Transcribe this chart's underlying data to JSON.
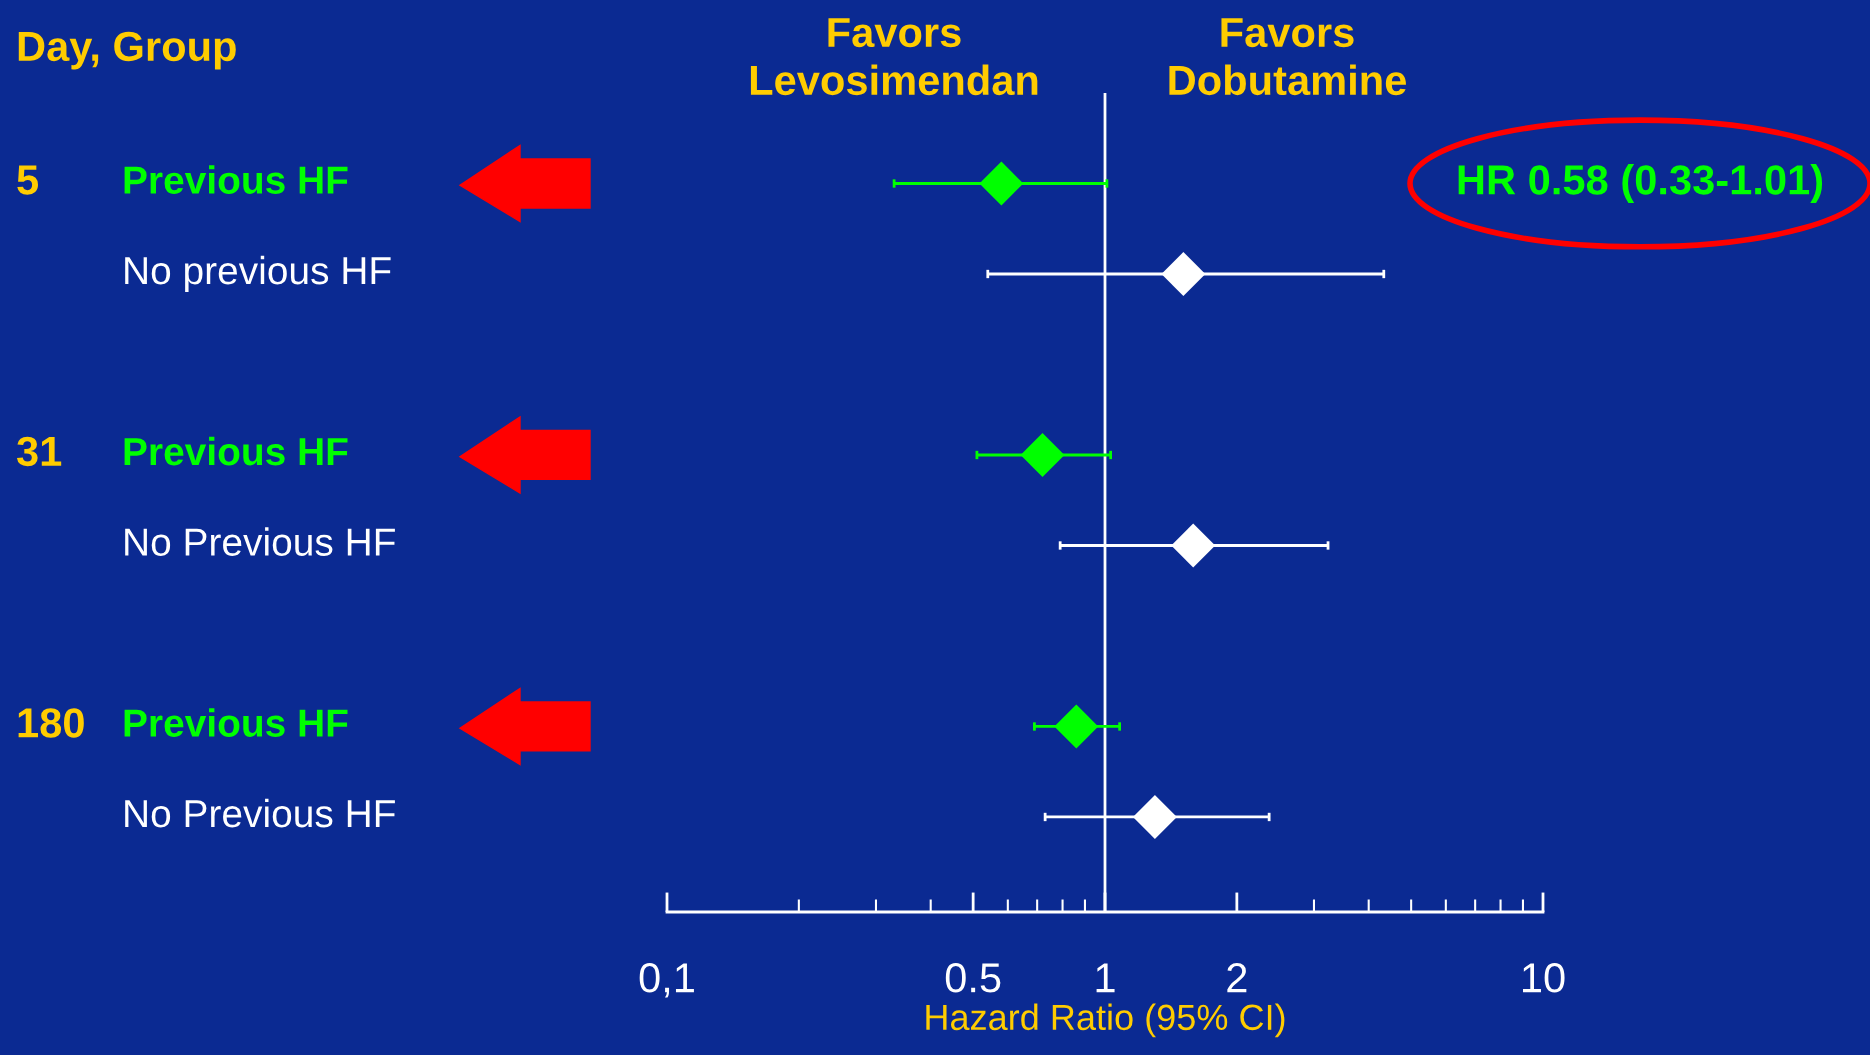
{
  "chart_data": {
    "type": "scatter",
    "orientation": "horizontal",
    "log": "x",
    "marker": "diamond",
    "grid": false,
    "categories": [
      "Previous HF",
      "No previous HF",
      null,
      "Previous HF",
      "No Previous HF",
      null,
      "Previous HF",
      "No Previous HF"
    ],
    "series": [
      {
        "color": "#00ff00",
        "values": [
          0.58,
          null,
          null,
          0.72,
          null,
          null,
          0.86,
          null
        ],
        "errors": [
          [
            0.33,
            1.01
          ],
          null,
          null,
          [
            0.51,
            1.03
          ],
          null,
          null,
          [
            0.69,
            1.08
          ],
          null
        ]
      },
      {
        "color": "#ffffff",
        "values": [
          null,
          1.51,
          null,
          null,
          1.59,
          null,
          null,
          1.3
        ],
        "errors": [
          null,
          [
            0.54,
            4.33
          ],
          null,
          null,
          [
            0.79,
            3.23
          ],
          null,
          null,
          [
            0.73,
            2.37
          ]
        ]
      }
    ],
    "xlim": [
      0.1,
      10
    ],
    "xticks": [
      {
        "value": 0.1,
        "label": "0,1"
      },
      {
        "value": 0.5,
        "label": "0.5"
      },
      1,
      2,
      10
    ],
    "xlabel": "Hazard Ratio (95% CI)",
    "ref_lines": [
      {
        "axis": "x",
        "value": 1,
        "color": "#ffffff"
      }
    ],
    "annotations": [
      "Day, Group",
      "5",
      "31",
      "180",
      "Favors\nLevosimendan",
      "Favors\nDobutamine",
      "HR 0.58 (0.33-1.01)"
    ]
  }
}
